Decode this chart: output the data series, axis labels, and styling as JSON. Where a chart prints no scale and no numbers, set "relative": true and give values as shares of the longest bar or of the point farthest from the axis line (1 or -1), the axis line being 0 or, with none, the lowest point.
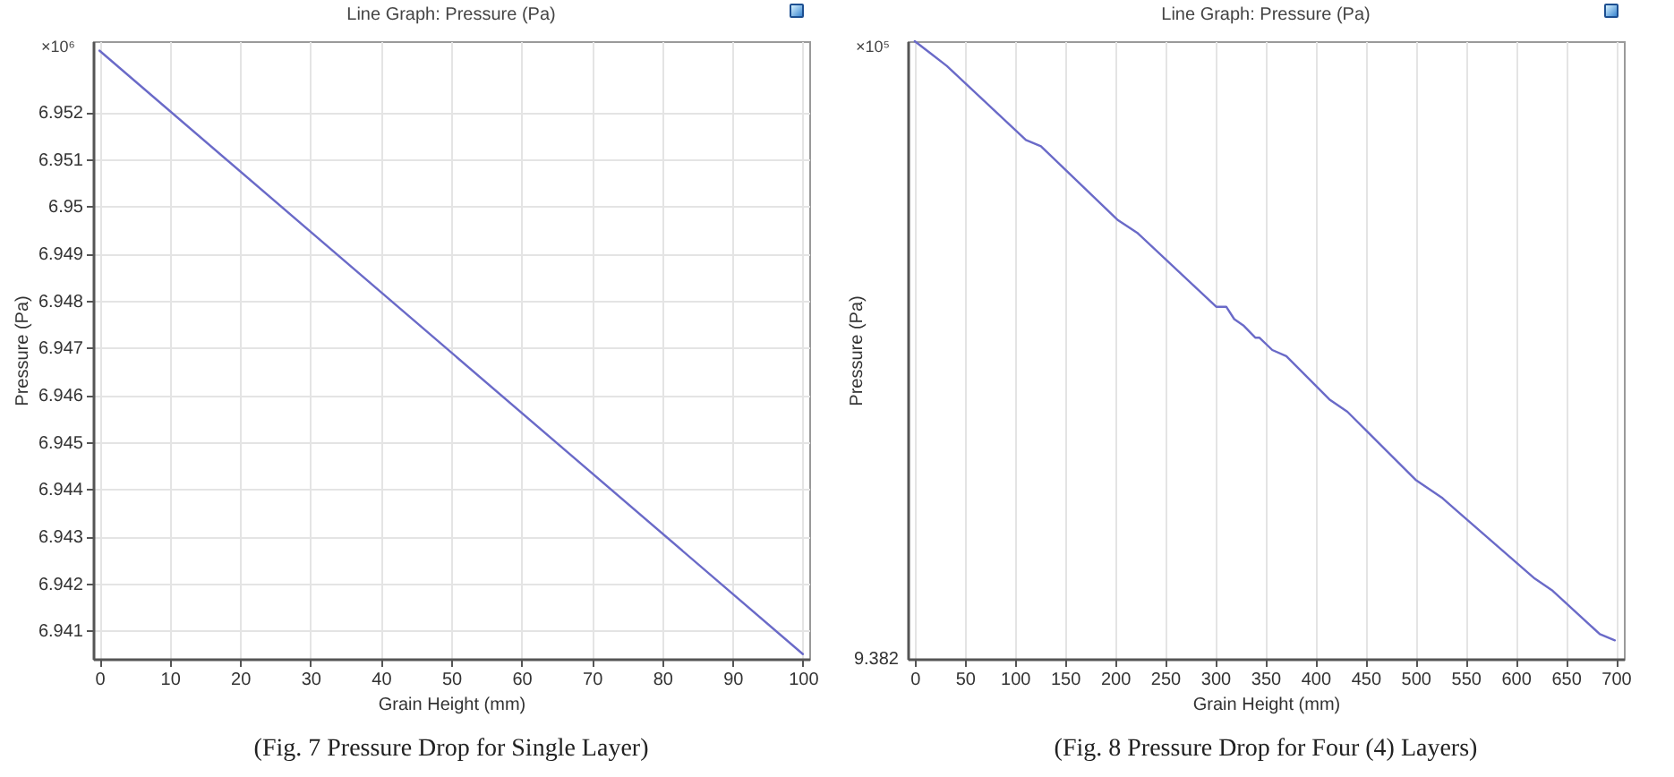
{
  "chart_data": [
    {
      "type": "line",
      "title": "Line Graph: Pressure (Pa)",
      "xlabel": "Grain Height (mm)",
      "ylabel": "Pressure (Pa)",
      "x": [
        0,
        50,
        100
      ],
      "series": [
        {
          "color": "#6a6ac8",
          "values": [
            6.9533,
            6.9469,
            6.9405
          ]
        }
      ],
      "xlim": [
        -0.9,
        100.9
      ],
      "ylim": [
        6.9404,
        6.9535
      ],
      "xticks": [
        0,
        10,
        20,
        30,
        40,
        50,
        60,
        70,
        80,
        90,
        100
      ],
      "yticks": [
        6.941,
        6.942,
        6.943,
        6.944,
        6.945,
        6.946,
        6.947,
        6.948,
        6.949,
        6.95,
        6.951,
        6.952
      ],
      "grid": true,
      "annotations": [
        "×10⁶",
        "(Fig. 7 Pressure Drop for Single Layer)"
      ]
    },
    {
      "type": "line",
      "title": "Line Graph: Pressure (Pa)",
      "xlabel": "Grain Height (mm)",
      "ylabel": "Pressure (Pa)",
      "relative": true,
      "x": [
        0,
        16,
        32,
        111,
        126,
        203,
        222,
        301,
        311,
        319,
        328,
        340,
        344,
        357,
        371,
        414,
        432,
        500,
        527,
        541,
        619,
        637,
        684,
        699
      ],
      "series": [
        {
          "color": "#6a6ac8",
          "values": [
            1,
            0.98,
            0.96,
            0.84,
            0.83,
            0.71,
            0.69,
            0.57,
            0.57,
            0.55,
            0.54,
            0.52,
            0.52,
            0.5,
            0.49,
            0.42,
            0.4,
            0.29,
            0.26,
            0.24,
            0.13,
            0.11,
            0.04,
            0.03
          ]
        }
      ],
      "xlim": [
        -7,
        708
      ],
      "xticks": [
        0,
        50,
        100,
        150,
        200,
        250,
        300,
        350,
        400,
        450,
        500,
        550,
        600,
        650,
        700
      ],
      "grid": "x",
      "annotations": [
        "×10⁵",
        "9.382",
        "(Fig. 8 Pressure Drop for Four (4) Layers)"
      ]
    }
  ]
}
